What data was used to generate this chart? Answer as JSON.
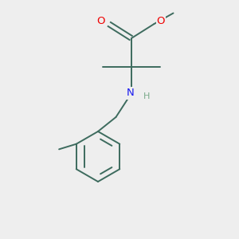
{
  "background_color": "#eeeeee",
  "bond_color": "#3d6b5e",
  "atom_colors": {
    "O": "#ee0000",
    "N": "#1a1aee",
    "H": "#7aaa8a",
    "C": "#3d6b5e"
  },
  "figsize": [
    3.0,
    3.0
  ],
  "dpi": 100,
  "xlim": [
    0,
    10
  ],
  "ylim": [
    0,
    10
  ]
}
